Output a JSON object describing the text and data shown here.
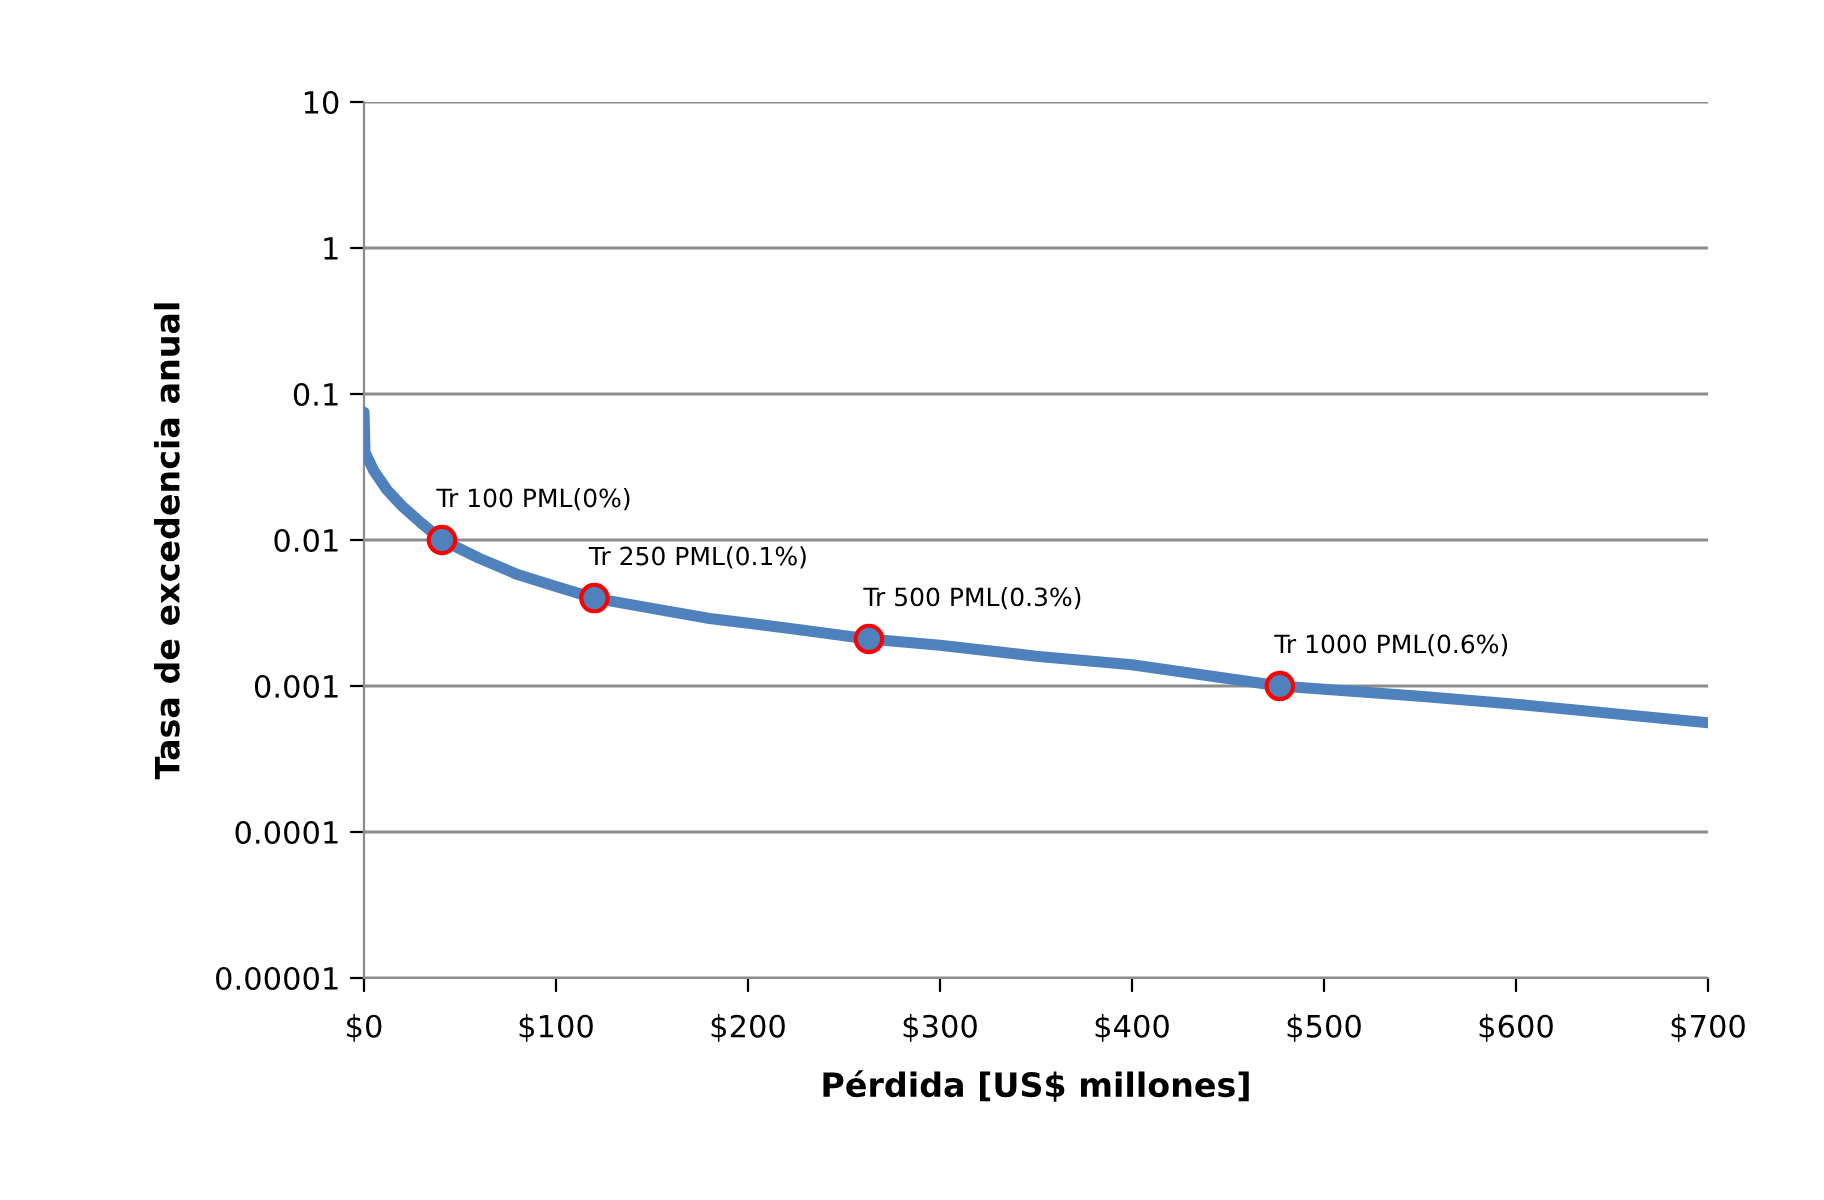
{
  "chart_data": {
    "type": "line",
    "xlabel": "Pérdida [US$ millones]",
    "ylabel": "Tasa de excedencia anual",
    "log": "y",
    "grid": "y",
    "legend": false,
    "xlim": [
      0,
      700
    ],
    "xticks": [
      {
        "value": 0,
        "label": "$0"
      },
      {
        "value": 100,
        "label": "$100"
      },
      {
        "value": 200,
        "label": "$200"
      },
      {
        "value": 300,
        "label": "$300"
      },
      {
        "value": 400,
        "label": "$400"
      },
      {
        "value": 500,
        "label": "$500"
      },
      {
        "value": 600,
        "label": "$600"
      },
      {
        "value": 700,
        "label": "$700"
      }
    ],
    "ylim": [
      1e-05,
      10
    ],
    "yticks": [
      {
        "value": 1e-05,
        "label": "0.00001"
      },
      {
        "value": 0.0001,
        "label": "0.0001"
      },
      {
        "value": 0.001,
        "label": "0.001"
      },
      {
        "value": 0.01,
        "label": "0.01"
      },
      {
        "value": 0.1,
        "label": "0.1"
      },
      {
        "value": 1,
        "label": "1"
      },
      {
        "value": 10,
        "label": "10"
      }
    ],
    "series": [
      {
        "color": "#4f81bd",
        "marker": "none",
        "x": [
          0,
          0.5,
          5,
          12,
          20,
          30,
          40.6,
          60,
          80,
          100,
          120,
          150,
          180,
          220,
          263,
          300,
          350,
          400,
          477,
          550,
          600,
          700
        ],
        "values": [
          0.075,
          0.04,
          0.03,
          0.022,
          0.017,
          0.013,
          0.01,
          0.0075,
          0.0058,
          0.0048,
          0.004,
          0.0034,
          0.0029,
          0.0025,
          0.0021,
          0.0019,
          0.0016,
          0.0014,
          0.001,
          0.00085,
          0.00075,
          0.00056
        ]
      },
      {
        "type": "scatter",
        "color": "#4f81bd",
        "marker": "circle",
        "x": [
          40.6,
          120,
          263,
          477
        ],
        "values": [
          0.01,
          0.004,
          0.0021,
          0.001
        ]
      }
    ],
    "annotations": [
      {
        "text": "Tr 100 PML(0%)",
        "x": 40.6,
        "y": 0.01
      },
      {
        "text": "Tr 250 PML(0.1%)",
        "x": 120,
        "y": 0.004
      },
      {
        "text": "Tr 500 PML(0.3%)",
        "x": 263,
        "y": 0.0021
      },
      {
        "text": "Tr 1000 PML(0.6%)",
        "x": 477,
        "y": 0.001
      }
    ]
  }
}
